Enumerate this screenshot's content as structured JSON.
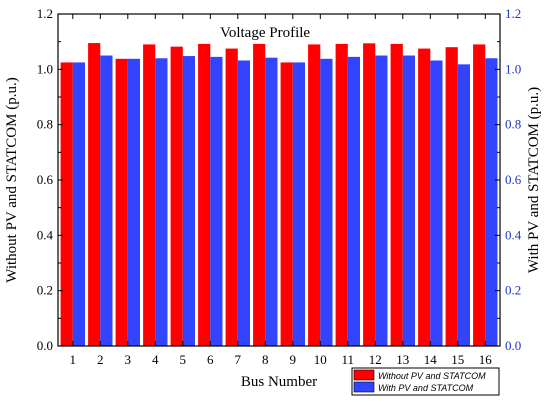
{
  "chart_data": {
    "type": "bar",
    "title": "Voltage Profile",
    "xlabel": "Bus Number",
    "ylabel_left": "Without PV and STATCOM (p.u.)",
    "ylabel_right": "With PV and STATCOM (p.u.)",
    "ylim": [
      0,
      1.2
    ],
    "yticks": [
      "0.0",
      "0.2",
      "0.4",
      "0.6",
      "0.8",
      "1.0",
      "1.2"
    ],
    "categories": [
      "1",
      "2",
      "3",
      "4",
      "5",
      "6",
      "7",
      "8",
      "9",
      "10",
      "11",
      "12",
      "13",
      "14",
      "15",
      "16"
    ],
    "series": [
      {
        "name": "Without PV and STATCOM",
        "color": "#ff0000",
        "axis": "left",
        "values": [
          1.025,
          1.095,
          1.038,
          1.09,
          1.082,
          1.092,
          1.075,
          1.092,
          1.025,
          1.09,
          1.092,
          1.094,
          1.092,
          1.075,
          1.08,
          1.09
        ]
      },
      {
        "name": "With PV and STATCOM",
        "color": "#3344ff",
        "axis": "right",
        "values": [
          1.025,
          1.05,
          1.038,
          1.04,
          1.048,
          1.045,
          1.032,
          1.042,
          1.025,
          1.038,
          1.045,
          1.05,
          1.05,
          1.032,
          1.018,
          1.04
        ]
      }
    ],
    "legend_position": "bottom-right",
    "grid": false
  }
}
